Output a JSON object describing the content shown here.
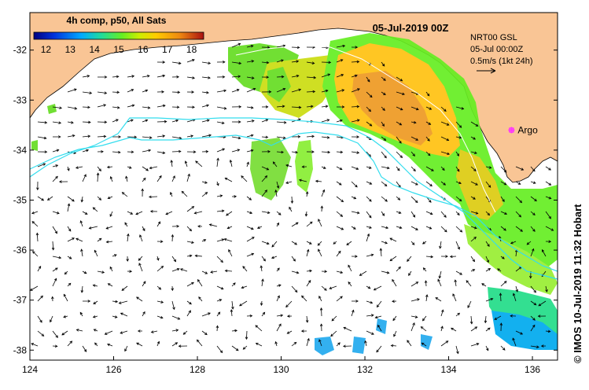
{
  "map": {
    "title": "05-Jul-2019 00Z",
    "legend": {
      "title": "4h comp, p50, All Sats",
      "ticks": [
        "12",
        "13",
        "14",
        "15",
        "16",
        "17",
        "18"
      ],
      "min": 11.5,
      "max": 18.5
    },
    "info": {
      "line1": "NRT00 GSL",
      "line2": "05-Jul 00:00Z",
      "line3": "0.5m/s (1kt 24h)"
    },
    "marker": {
      "label": "Argo",
      "lon": 135.5,
      "lat": -33.6,
      "color": "#ff33ff"
    },
    "credit": "© IMOS 10-Jul-2019 11:32 Hobart",
    "axes": {
      "lon_ticks": [
        "124",
        "126",
        "128",
        "130",
        "132",
        "134",
        "136"
      ],
      "lat_ticks": [
        "-32",
        "-33",
        "-34",
        "-35",
        "-36",
        "-37",
        "-38"
      ],
      "lon_range": [
        124,
        136.6
      ],
      "lat_range": [
        -38.2,
        -31.25
      ]
    },
    "colors": {
      "land": "#f9c595",
      "ocean": "#ffffff",
      "current_line": "#33ddee",
      "arrow": "#000000"
    }
  }
}
